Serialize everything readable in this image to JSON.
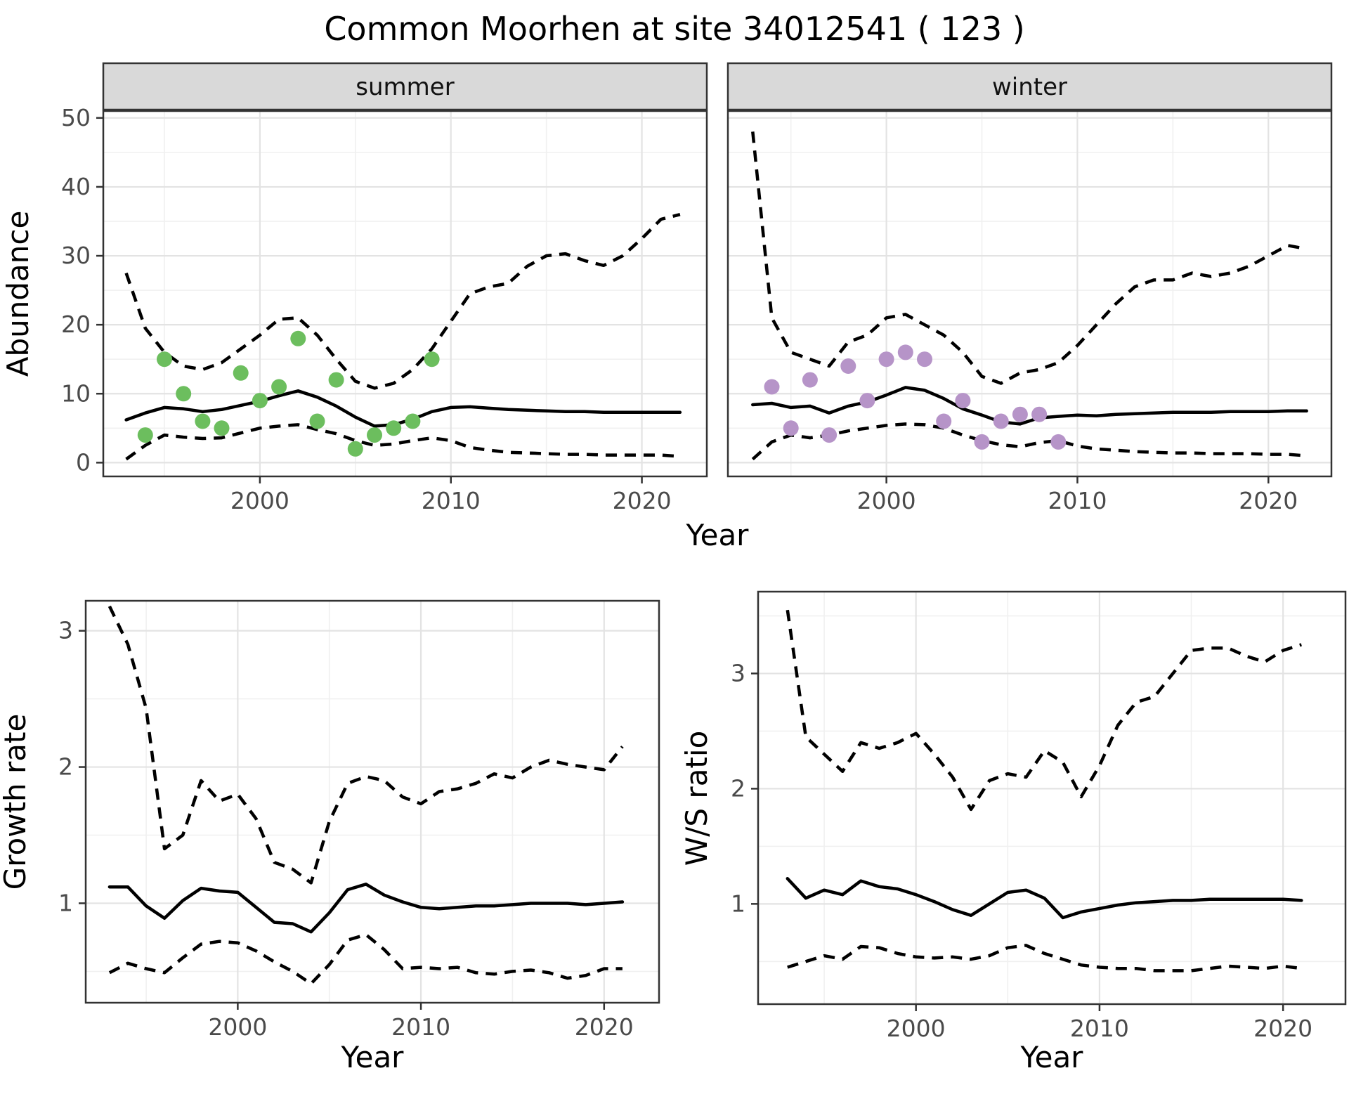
{
  "title": "Common Moorhen at site 34012541 ( 123 )",
  "colors": {
    "summer_points": "#6cbe5e",
    "winter_points": "#b694c8",
    "fit_line": "#000000",
    "ci_line": "#000000",
    "strip_bg": "#d9d9d9",
    "panel_border": "#333333",
    "grid_major": "#e3e3e3",
    "grid_minor": "#f0f0f0",
    "tick_text": "#4a4a4a"
  },
  "chart_data": {
    "type": "line",
    "title": "Common Moorhen at site 34012541 ( 123 )",
    "legend_position": "none",
    "grid": true,
    "panels": [
      {
        "key": "abundance_summer",
        "facet_label": "summer",
        "ylabel": "Abundance",
        "xlabel": "Year",
        "x_ticks": [
          2000,
          2010,
          2020
        ],
        "x_minor": [
          1995,
          2005,
          2015
        ],
        "y_ticks": [
          0,
          10,
          20,
          30,
          40,
          50
        ],
        "y_minor": [
          5,
          15,
          25,
          35,
          45
        ],
        "xlim": [
          1991.8,
          2023.4
        ],
        "ylim": [
          -2.0,
          51.0
        ],
        "years": [
          1993,
          1994,
          1995,
          1996,
          1997,
          1998,
          1999,
          2000,
          2001,
          2002,
          2003,
          2004,
          2005,
          2006,
          2007,
          2008,
          2009,
          2010,
          2011,
          2012,
          2013,
          2014,
          2015,
          2016,
          2017,
          2018,
          2019,
          2020,
          2021,
          2022
        ],
        "median": [
          6.2,
          7.2,
          8.0,
          7.8,
          7.4,
          7.7,
          8.3,
          8.9,
          9.7,
          10.4,
          9.5,
          8.2,
          6.6,
          5.3,
          5.5,
          6.3,
          7.4,
          8.0,
          8.1,
          7.9,
          7.7,
          7.6,
          7.5,
          7.4,
          7.4,
          7.3,
          7.3,
          7.3,
          7.3,
          7.3
        ],
        "upper_ci": [
          27.5,
          19.5,
          16,
          14,
          13.5,
          14.5,
          16.5,
          18.5,
          20.8,
          21,
          18.5,
          15,
          11.8,
          10.8,
          11.5,
          13.5,
          16.5,
          20.5,
          24.5,
          25.5,
          26,
          28.5,
          30,
          30.3,
          29.3,
          28.6,
          30,
          32.5,
          35.3,
          36
        ],
        "lower_ci": [
          0.5,
          2.5,
          4,
          3.7,
          3.5,
          3.6,
          4.3,
          5,
          5.3,
          5.5,
          4.8,
          4.2,
          3.2,
          2.5,
          2.7,
          3.2,
          3.6,
          3.2,
          2.2,
          1.8,
          1.5,
          1.4,
          1.3,
          1.2,
          1.2,
          1.1,
          1.1,
          1.1,
          1.1,
          0.9
        ],
        "points": {
          "years": [
            1994,
            1995,
            1996,
            1997,
            1998,
            1999,
            2000,
            2001,
            2002,
            2003,
            2004,
            2005,
            2006,
            2007,
            2008,
            2009
          ],
          "values": [
            4,
            15,
            10,
            6,
            5,
            13,
            9,
            11,
            18,
            6,
            12,
            2,
            4,
            5,
            6,
            15
          ],
          "color": "#6cbe5e"
        }
      },
      {
        "key": "abundance_winter",
        "facet_label": "winter",
        "ylabel": "Abundance",
        "xlabel": "Year",
        "x_ticks": [
          2000,
          2010,
          2020
        ],
        "x_minor": [
          1995,
          2005,
          2015
        ],
        "y_ticks": [
          0,
          10,
          20,
          30,
          40,
          50
        ],
        "y_minor": [
          5,
          15,
          25,
          35,
          45
        ],
        "xlim": [
          1991.7,
          2023.3
        ],
        "ylim": [
          -2.0,
          51.0
        ],
        "years": [
          1993,
          1994,
          1995,
          1996,
          1997,
          1998,
          1999,
          2000,
          2001,
          2002,
          2003,
          2004,
          2005,
          2006,
          2007,
          2008,
          2009,
          2010,
          2011,
          2012,
          2013,
          2014,
          2015,
          2016,
          2017,
          2018,
          2019,
          2020,
          2021,
          2022
        ],
        "median": [
          8.4,
          8.6,
          8.0,
          8.2,
          7.2,
          8.2,
          8.8,
          9.8,
          10.9,
          10.5,
          9.3,
          7.8,
          6.9,
          5.9,
          5.6,
          6.5,
          6.7,
          6.9,
          6.8,
          7.0,
          7.1,
          7.2,
          7.3,
          7.3,
          7.3,
          7.4,
          7.4,
          7.4,
          7.5,
          7.5
        ],
        "upper_ci": [
          48,
          21,
          16,
          15,
          14,
          17.5,
          18.5,
          21,
          21.5,
          20,
          18.5,
          16,
          12.5,
          11.5,
          13,
          13.5,
          14.5,
          17,
          20,
          23,
          25.5,
          26.5,
          26.5,
          27.5,
          27,
          27.5,
          28.5,
          30,
          31.5,
          31
        ],
        "lower_ci": [
          0.5,
          3,
          4,
          3.6,
          4,
          4.6,
          5,
          5.4,
          5.6,
          5.5,
          5,
          4,
          3.2,
          2.6,
          2.3,
          2.9,
          3.2,
          2.4,
          2,
          1.8,
          1.6,
          1.5,
          1.4,
          1.4,
          1.3,
          1.3,
          1.3,
          1.2,
          1.2,
          1.0
        ],
        "points": {
          "years": [
            1994,
            1995,
            1996,
            1997,
            1998,
            1999,
            2000,
            2001,
            2002,
            2003,
            2004,
            2005,
            2006,
            2007,
            2008,
            2009
          ],
          "values": [
            11,
            5,
            12,
            4,
            14,
            9,
            15,
            16,
            15,
            6,
            9,
            3,
            6,
            7,
            7,
            3
          ],
          "color": "#b694c8"
        }
      },
      {
        "key": "growth_rate",
        "facet_label": "",
        "ylabel": "Growth rate",
        "xlabel": "Year",
        "x_ticks": [
          2000,
          2010,
          2020
        ],
        "x_minor": [
          1995,
          2005,
          2015
        ],
        "y_ticks": [
          1,
          2,
          3
        ],
        "y_minor": [
          0.5,
          1.5,
          2.5
        ],
        "xlim": [
          1991.7,
          2023.0
        ],
        "ylim": [
          0.27,
          3.22
        ],
        "years": [
          1993,
          1994,
          1995,
          1996,
          1997,
          1998,
          1999,
          2000,
          2001,
          2002,
          2003,
          2004,
          2005,
          2006,
          2007,
          2008,
          2009,
          2010,
          2011,
          2012,
          2013,
          2014,
          2015,
          2016,
          2017,
          2018,
          2019,
          2020,
          2021
        ],
        "median": [
          1.12,
          1.12,
          0.98,
          0.89,
          1.02,
          1.11,
          1.09,
          1.08,
          0.97,
          0.86,
          0.85,
          0.79,
          0.93,
          1.1,
          1.14,
          1.06,
          1.01,
          0.97,
          0.96,
          0.97,
          0.98,
          0.98,
          0.99,
          1.0,
          1.0,
          1.0,
          0.99,
          1.0,
          1.01
        ],
        "upper_ci": [
          3.18,
          2.9,
          2.43,
          1.4,
          1.5,
          1.9,
          1.75,
          1.8,
          1.62,
          1.3,
          1.25,
          1.15,
          1.6,
          1.88,
          1.93,
          1.9,
          1.78,
          1.73,
          1.82,
          1.84,
          1.88,
          1.95,
          1.92,
          2.0,
          2.05,
          2.02,
          2.0,
          1.98,
          2.15
        ],
        "lower_ci": [
          0.49,
          0.56,
          0.52,
          0.49,
          0.6,
          0.7,
          0.72,
          0.71,
          0.65,
          0.57,
          0.5,
          0.41,
          0.55,
          0.73,
          0.77,
          0.66,
          0.52,
          0.53,
          0.52,
          0.53,
          0.49,
          0.48,
          0.5,
          0.51,
          0.49,
          0.45,
          0.47,
          0.52,
          0.52
        ],
        "points": null
      },
      {
        "key": "ws_ratio",
        "facet_label": "",
        "ylabel": "W/S ratio",
        "xlabel": "Year",
        "x_ticks": [
          2000,
          2010,
          2020
        ],
        "x_minor": [
          1995,
          2005,
          2015
        ],
        "y_ticks": [
          1,
          2,
          3
        ],
        "y_minor": [
          0.5,
          1.5,
          2.5,
          3.5
        ],
        "xlim": [
          1991.4,
          2023.4
        ],
        "ylim": [
          0.13,
          3.71
        ],
        "years": [
          1993,
          1994,
          1995,
          1996,
          1997,
          1998,
          1999,
          2000,
          2001,
          2002,
          2003,
          2004,
          2005,
          2006,
          2007,
          2008,
          2009,
          2010,
          2011,
          2012,
          2013,
          2014,
          2015,
          2016,
          2017,
          2018,
          2019,
          2020,
          2021
        ],
        "median": [
          1.22,
          1.05,
          1.12,
          1.08,
          1.2,
          1.15,
          1.13,
          1.08,
          1.02,
          0.95,
          0.9,
          1.0,
          1.1,
          1.12,
          1.05,
          0.88,
          0.93,
          0.96,
          0.99,
          1.01,
          1.02,
          1.03,
          1.03,
          1.04,
          1.04,
          1.04,
          1.04,
          1.04,
          1.03
        ],
        "upper_ci": [
          3.55,
          2.45,
          2.3,
          2.15,
          2.4,
          2.35,
          2.4,
          2.48,
          2.3,
          2.1,
          1.82,
          2.07,
          2.13,
          2.1,
          2.33,
          2.23,
          1.93,
          2.2,
          2.55,
          2.75,
          2.8,
          3.0,
          3.2,
          3.22,
          3.22,
          3.15,
          3.1,
          3.2,
          3.25
        ],
        "lower_ci": [
          0.45,
          0.5,
          0.55,
          0.52,
          0.63,
          0.62,
          0.57,
          0.54,
          0.53,
          0.54,
          0.52,
          0.55,
          0.62,
          0.64,
          0.57,
          0.52,
          0.47,
          0.45,
          0.44,
          0.44,
          0.42,
          0.42,
          0.42,
          0.44,
          0.46,
          0.45,
          0.44,
          0.46,
          0.44
        ],
        "points": null
      }
    ]
  }
}
